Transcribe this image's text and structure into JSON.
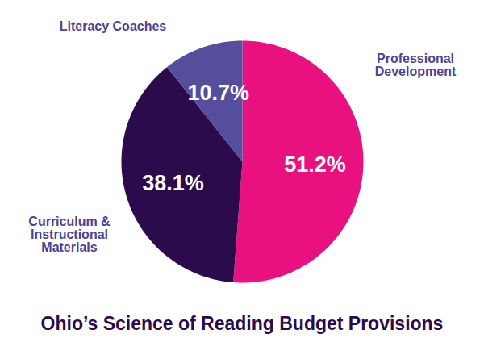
{
  "chart_data": {
    "type": "pie",
    "title": "Ohio’s Science of Reading Budget Provisions",
    "categories": [
      "Professional\nDevelopment",
      "Curriculum &\nInstructional\nMaterials",
      "Literacy Coaches"
    ],
    "values": [
      51.2,
      38.1,
      10.7
    ],
    "value_labels": [
      "51.2%",
      "38.1%",
      "10.7%"
    ],
    "colors": [
      "#e8117f",
      "#2b0b4b",
      "#544e9c"
    ],
    "data_labels": true
  }
}
